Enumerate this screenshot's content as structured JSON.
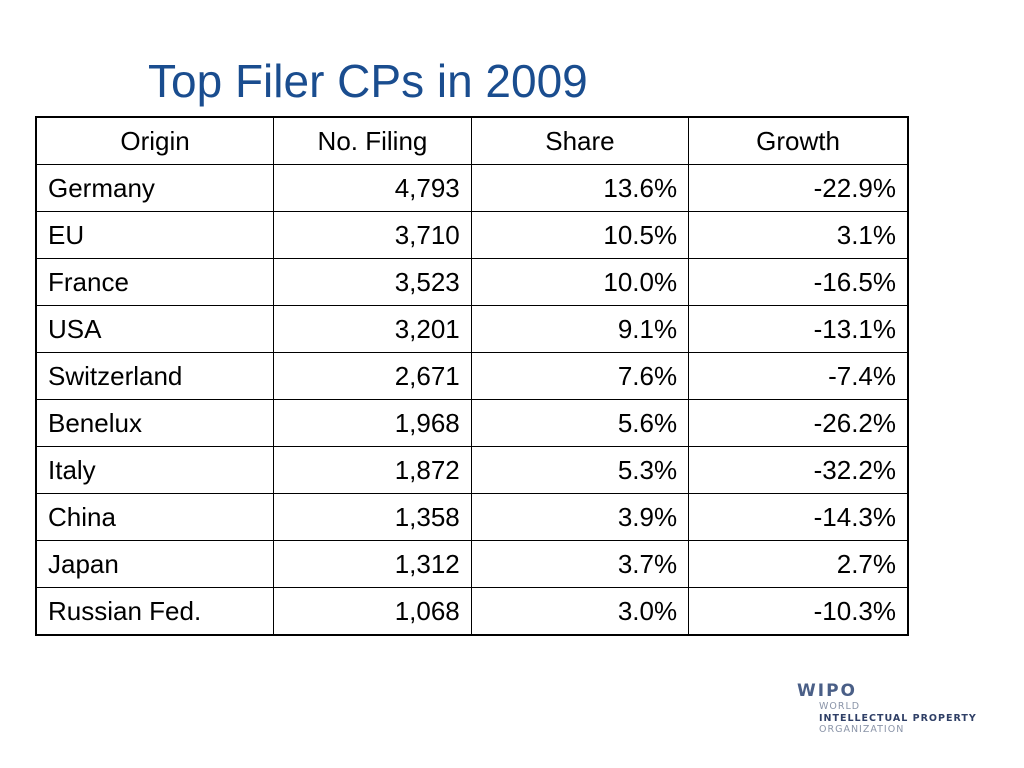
{
  "slide": {
    "title": "Top Filer CPs in 2009"
  },
  "table": {
    "headers": [
      "Origin",
      "No. Filing",
      "Share",
      "Growth"
    ],
    "rows": [
      [
        "Germany",
        "4,793",
        "13.6%",
        "-22.9%"
      ],
      [
        "EU",
        "3,710",
        "10.5%",
        "3.1%"
      ],
      [
        "France",
        "3,523",
        "10.0%",
        "-16.5%"
      ],
      [
        "USA",
        "3,201",
        "9.1%",
        "-13.1%"
      ],
      [
        "Switzerland",
        "2,671",
        "7.6%",
        "-7.4%"
      ],
      [
        "Benelux",
        "1,968",
        "5.6%",
        "-26.2%"
      ],
      [
        "Italy",
        "1,872",
        "5.3%",
        "-32.2%"
      ],
      [
        "China",
        "1,358",
        "3.9%",
        "-14.3%"
      ],
      [
        "Japan",
        "1,312",
        "3.7%",
        "2.7%"
      ],
      [
        "Russian Fed.",
        "1,068",
        "3.0%",
        "-10.3%"
      ]
    ]
  },
  "logo": {
    "name": "WIPO",
    "line1": "WORLD",
    "line2": "INTELLECTUAL PROPERTY",
    "line3": "ORGANIZATION"
  },
  "colors": {
    "title": "#1a4d8f",
    "logo": "#4a5f87"
  }
}
